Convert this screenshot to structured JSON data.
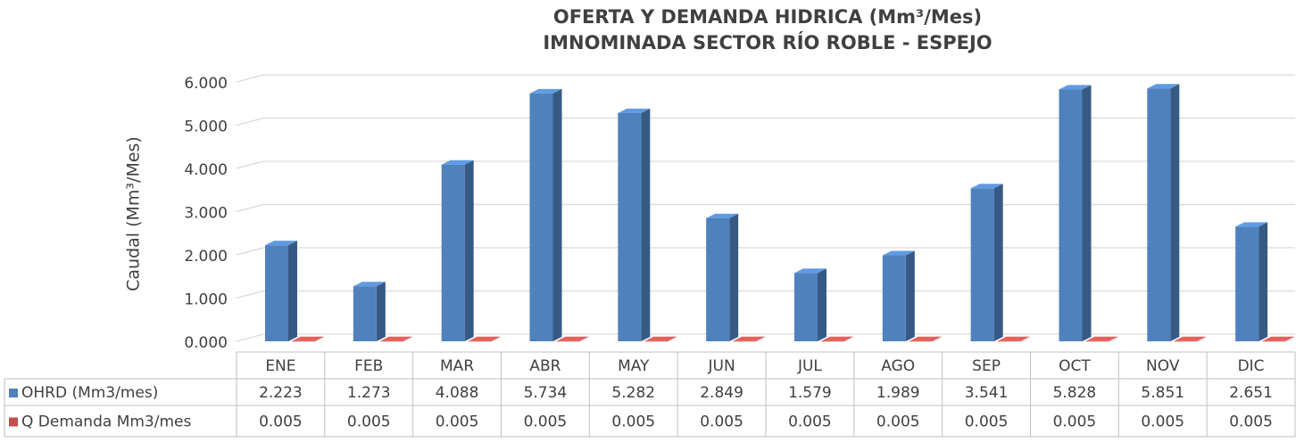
{
  "chart_data": {
    "type": "bar3d",
    "title": "OFERTA Y DEMANDA HIDRICA (Mm³/Mes)",
    "subtitle": "IMNOMINADA SECTOR RÍO ROBLE - ESPEJO",
    "y_label": "Caudal (Mm³/Mes)",
    "categories": [
      "ENE",
      "FEB",
      "MAR",
      "ABR",
      "MAY",
      "JUN",
      "JUL",
      "AGO",
      "SEP",
      "OCT",
      "NOV",
      "DIC"
    ],
    "series": [
      {
        "name": "OHRD (Mm3/mes)",
        "color": "#4f81bd",
        "values": [
          2.223,
          1.273,
          4.088,
          5.734,
          5.282,
          2.849,
          1.579,
          1.989,
          3.541,
          5.828,
          5.851,
          2.651
        ]
      },
      {
        "name": "Q Demanda Mm3/mes",
        "color": "#c0504d",
        "values": [
          0.005,
          0.005,
          0.005,
          0.005,
          0.005,
          0.005,
          0.005,
          0.005,
          0.005,
          0.005,
          0.005,
          0.005
        ]
      }
    ],
    "ylim": [
      0,
      6
    ],
    "yticks": [
      {
        "value": 0,
        "label": "0.000"
      },
      {
        "value": 1,
        "label": "1.000"
      },
      {
        "value": 2,
        "label": "2.000"
      },
      {
        "value": 3,
        "label": "3.000"
      },
      {
        "value": 4,
        "label": "4.000"
      },
      {
        "value": 5,
        "label": "5.000"
      },
      {
        "value": 6,
        "label": "6.000"
      }
    ],
    "grid": true
  }
}
